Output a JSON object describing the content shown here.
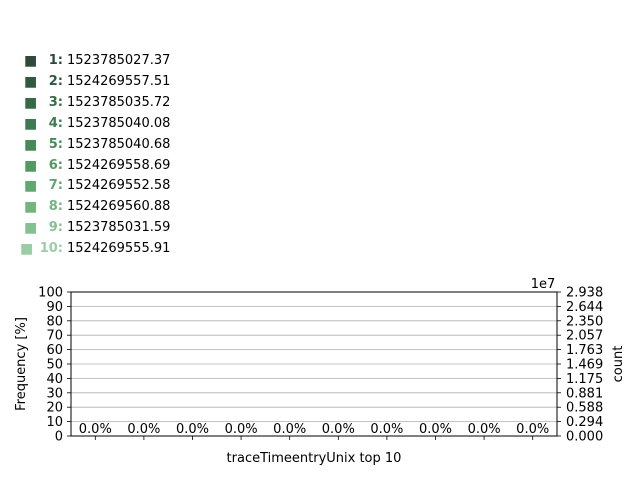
{
  "legend": {
    "items": [
      {
        "rank": "1:",
        "value": "1523785027.37",
        "color": "#2f4a3a"
      },
      {
        "rank": "2:",
        "value": "1524269557.51",
        "color": "#2f5a3f"
      },
      {
        "rank": "3:",
        "value": "1523785035.72",
        "color": "#366a46"
      },
      {
        "rank": "4:",
        "value": "1523785040.08",
        "color": "#3d7a4f"
      },
      {
        "rank": "5:",
        "value": "1523785040.68",
        "color": "#468a58"
      },
      {
        "rank": "6:",
        "value": "1524269558.69",
        "color": "#529a63"
      },
      {
        "rank": "7:",
        "value": "1524269552.58",
        "color": "#60a870"
      },
      {
        "rank": "8:",
        "value": "1524269560.88",
        "color": "#73b47f"
      },
      {
        "rank": "9:",
        "value": "1523785031.59",
        "color": "#86c092"
      },
      {
        "rank": "10:",
        "value": "1524269555.91",
        "color": "#9ccca6"
      }
    ]
  },
  "chart_data": {
    "type": "bar",
    "categories": [
      "1523785027.37",
      "1524269557.51",
      "1523785035.72",
      "1523785040.08",
      "1523785040.68",
      "1524269558.69",
      "1524269552.58",
      "1524269560.88",
      "1523785031.59",
      "1524269555.91"
    ],
    "values": [
      0.0,
      0.0,
      0.0,
      0.0,
      0.0,
      0.0,
      0.0,
      0.0,
      0.0,
      0.0
    ],
    "bar_labels": [
      "0.0%",
      "0.0%",
      "0.0%",
      "0.0%",
      "0.0%",
      "0.0%",
      "0.0%",
      "0.0%",
      "0.0%",
      "0.0%"
    ],
    "xlabel": "traceTimeentryUnix top 10",
    "ylabel": "Frequency [%]",
    "ylim": [
      0,
      100
    ],
    "yticks": [
      "0",
      "10",
      "20",
      "30",
      "40",
      "50",
      "60",
      "70",
      "80",
      "90",
      "100"
    ],
    "y2label": "count",
    "y2_offset_label": "1e7",
    "y2ticks": [
      "0.000",
      "0.294",
      "0.588",
      "0.881",
      "1.175",
      "1.469",
      "1.763",
      "2.057",
      "2.350",
      "2.644",
      "2.938"
    ],
    "grid": true
  }
}
